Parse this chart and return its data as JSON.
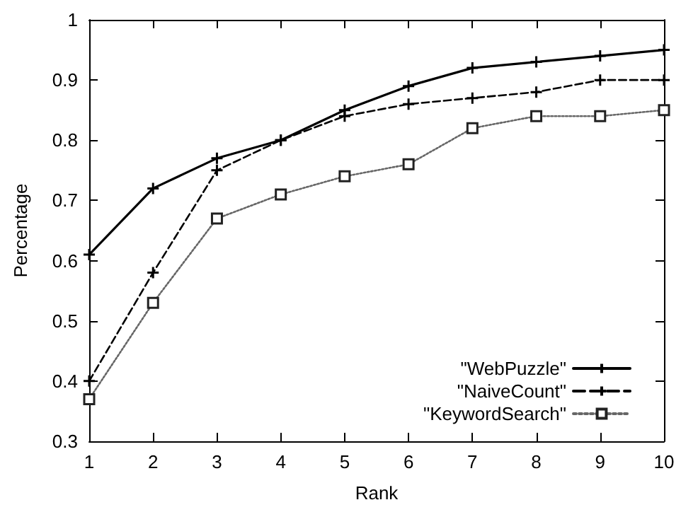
{
  "chart_data": {
    "type": "line",
    "xlabel": "Rank",
    "ylabel": "Percentage",
    "x": [
      1,
      2,
      3,
      4,
      5,
      6,
      7,
      8,
      9,
      10
    ],
    "series": [
      {
        "name": "\"WebPuzzle\"",
        "color": "#000000",
        "marker": "cross",
        "line_style": "solid",
        "values": [
          0.61,
          0.72,
          0.77,
          0.8,
          0.85,
          0.89,
          0.92,
          0.93,
          0.94,
          0.95
        ]
      },
      {
        "name": "\"NaiveCount\"",
        "color": "#000000",
        "marker": "cross",
        "line_style": "dashed",
        "values": [
          0.4,
          0.58,
          0.75,
          0.8,
          0.84,
          0.86,
          0.87,
          0.88,
          0.9,
          0.9
        ]
      },
      {
        "name": "\"KeywordSearch\"",
        "color": "#666666",
        "marker": "square",
        "line_style": "dotted",
        "values": [
          0.37,
          0.53,
          0.67,
          0.71,
          0.74,
          0.76,
          0.82,
          0.84,
          0.84,
          0.85
        ]
      }
    ],
    "xlim": [
      1,
      10
    ],
    "xticks": [
      1,
      2,
      3,
      4,
      5,
      6,
      7,
      8,
      9,
      10
    ],
    "ylim": [
      0.3,
      1
    ],
    "yticks": [
      0.3,
      0.4,
      0.5,
      0.6,
      0.7,
      0.8,
      0.9,
      1
    ],
    "grid": false,
    "legend": "bottom right"
  }
}
